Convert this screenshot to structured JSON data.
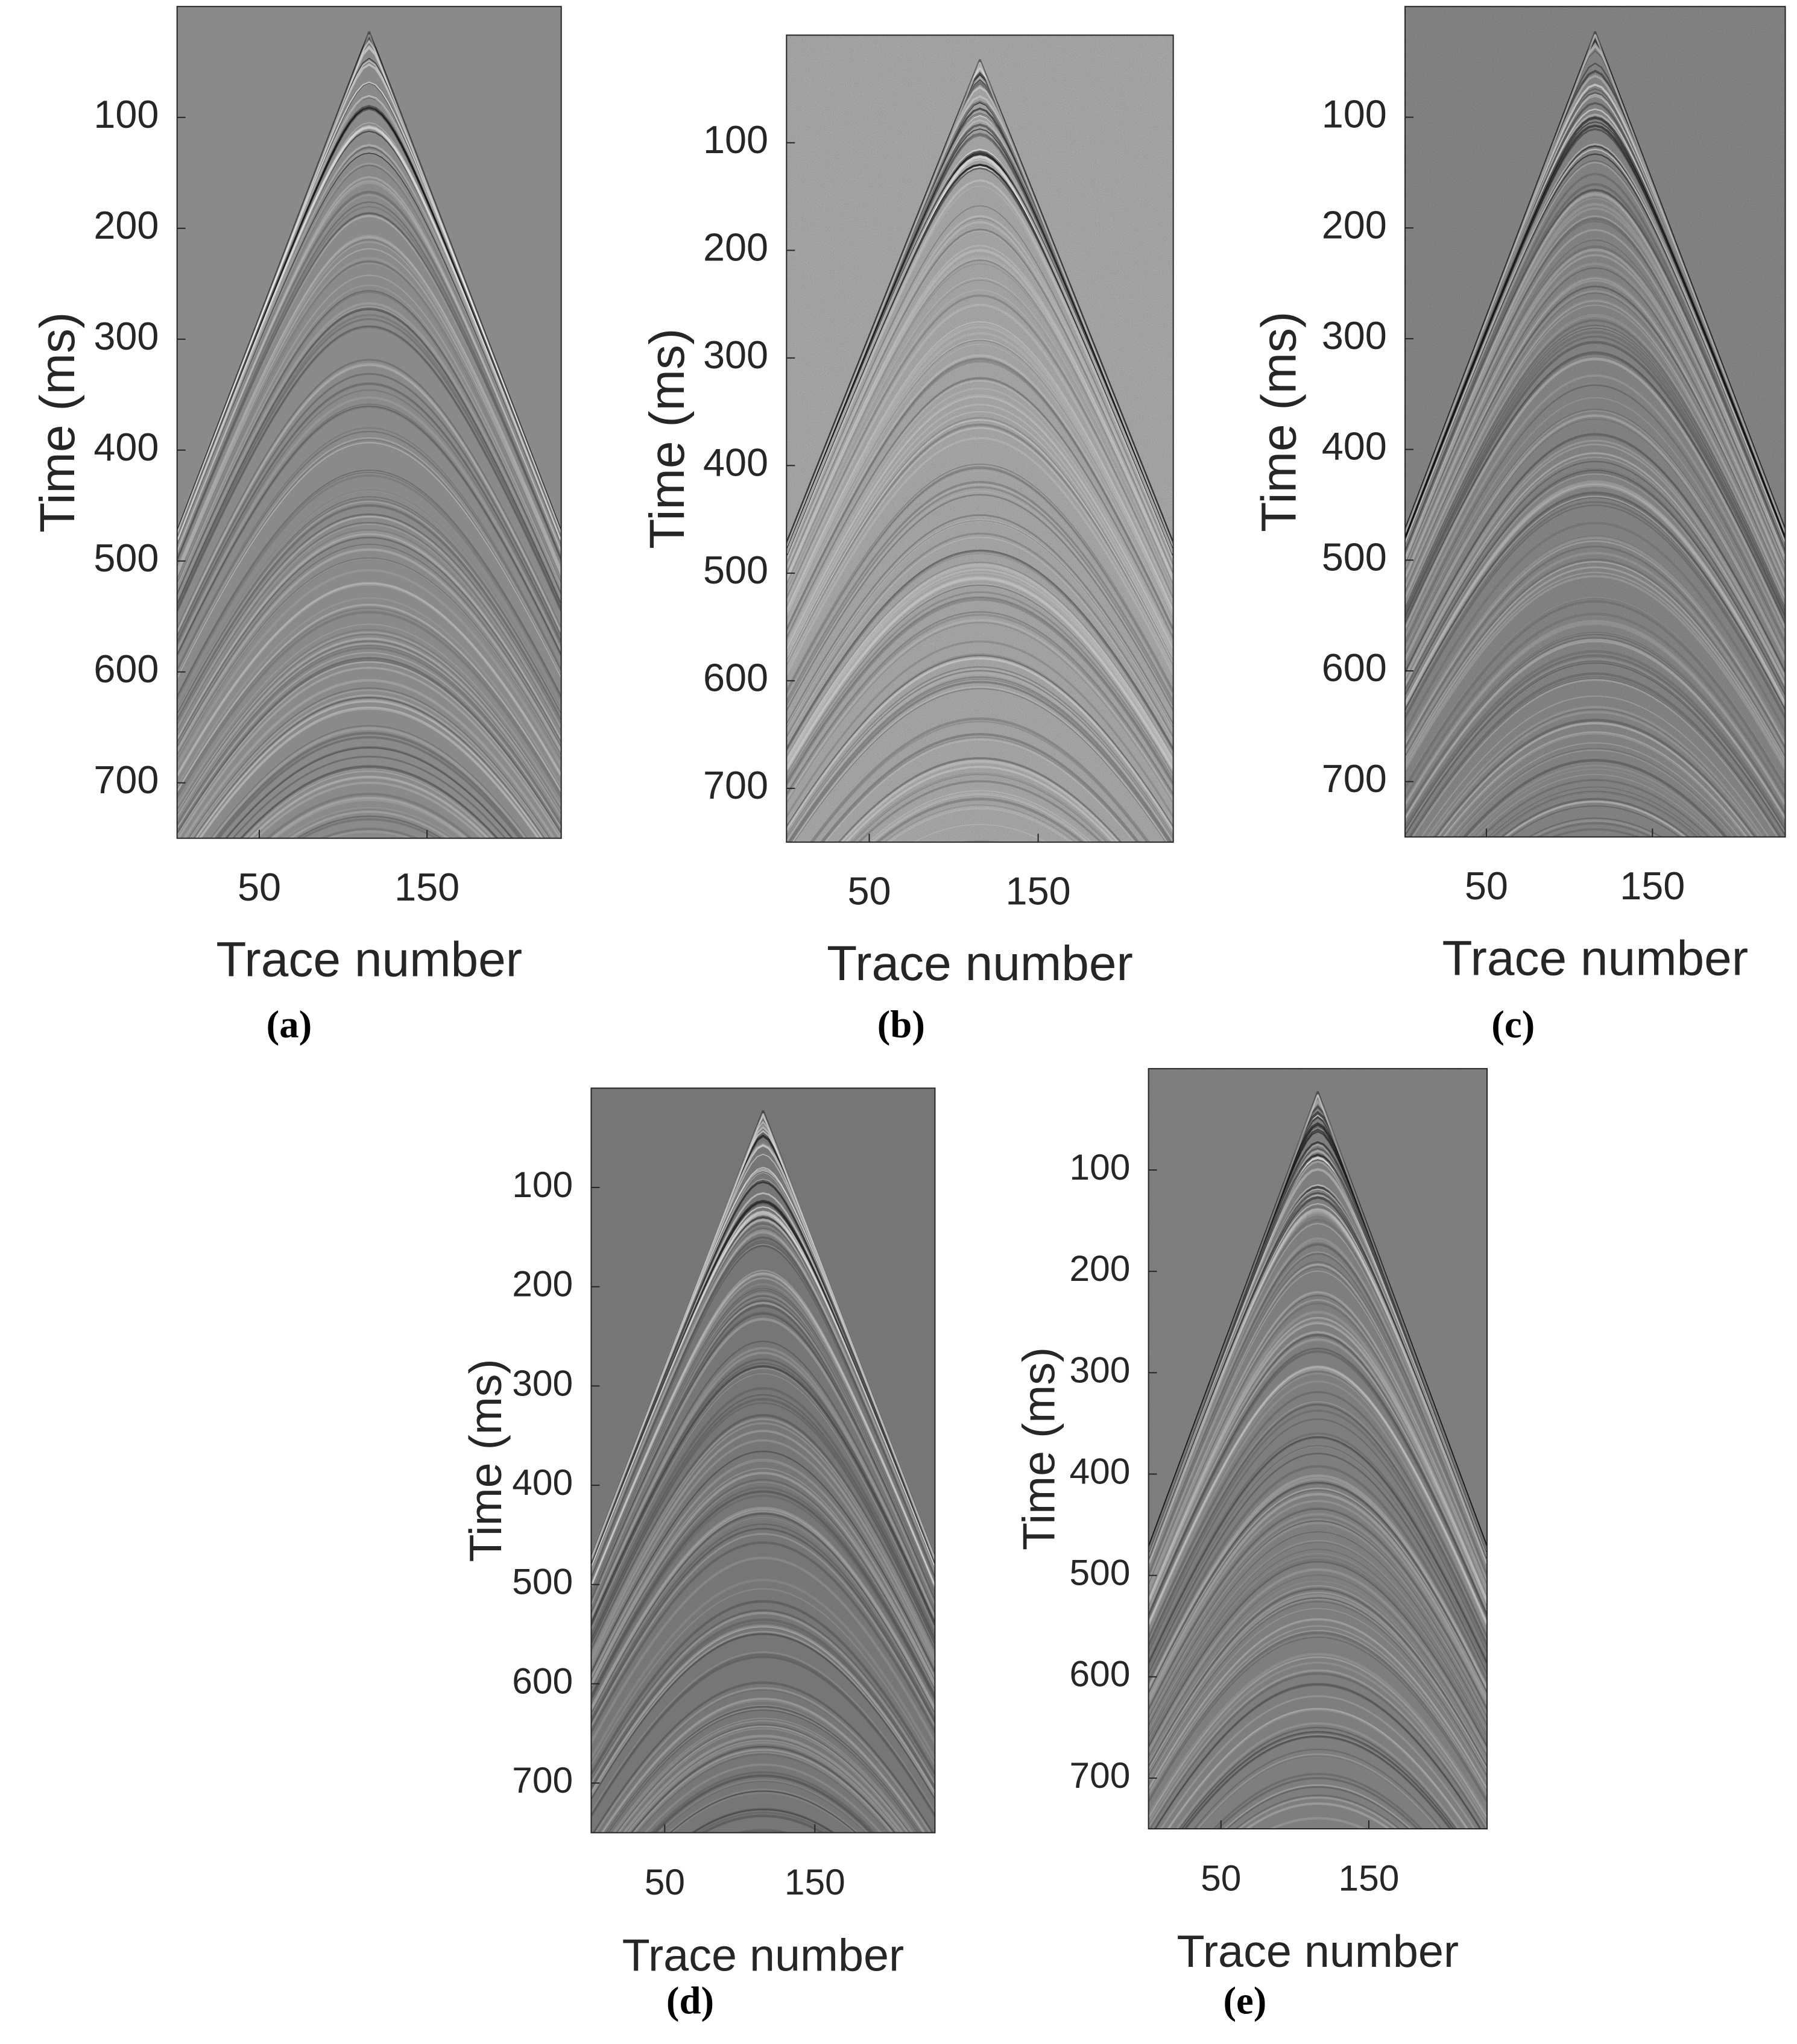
{
  "chart_data": [
    {
      "type": "seismic",
      "caption": "(a)",
      "xlabel": "Trace number",
      "ylabel": "Time (ms)",
      "xlim": [
        1,
        230
      ],
      "ylim": [
        0,
        750
      ],
      "xticks": [
        50,
        150
      ],
      "yticks": [
        100,
        200,
        300,
        400,
        500,
        600,
        700
      ],
      "color": "#8a8a8a"
    },
    {
      "type": "seismic",
      "caption": "(b)",
      "xlabel": "Trace number",
      "ylabel": "Time (ms)",
      "xlim": [
        1,
        230
      ],
      "ylim": [
        0,
        750
      ],
      "xticks": [
        50,
        150
      ],
      "yticks": [
        100,
        200,
        300,
        400,
        500,
        600,
        700
      ],
      "color": "#8c8c8c"
    },
    {
      "type": "seismic",
      "caption": "(c)",
      "xlabel": "Trace number",
      "ylabel": "Time (ms)",
      "xlim": [
        1,
        230
      ],
      "ylim": [
        0,
        750
      ],
      "xticks": [
        50,
        150
      ],
      "yticks": [
        100,
        200,
        300,
        400,
        500,
        600,
        700
      ],
      "color": "#616161"
    },
    {
      "type": "seismic",
      "caption": "(d)",
      "xlabel": "Trace number",
      "ylabel": "Time (ms)",
      "xlim": [
        1,
        230
      ],
      "ylim": [
        0,
        750
      ],
      "xticks": [
        50,
        150
      ],
      "yticks": [
        100,
        200,
        300,
        400,
        500,
        600,
        700
      ],
      "color": "#727272"
    },
    {
      "type": "seismic",
      "caption": "(e)",
      "xlabel": "Trace number",
      "ylabel": "Time (ms)",
      "xlim": [
        1,
        230
      ],
      "ylim": [
        0,
        750
      ],
      "xticks": [
        50,
        150
      ],
      "yticks": [
        100,
        200,
        300,
        400,
        500,
        600,
        700
      ],
      "color": "#7b7b7b"
    }
  ]
}
